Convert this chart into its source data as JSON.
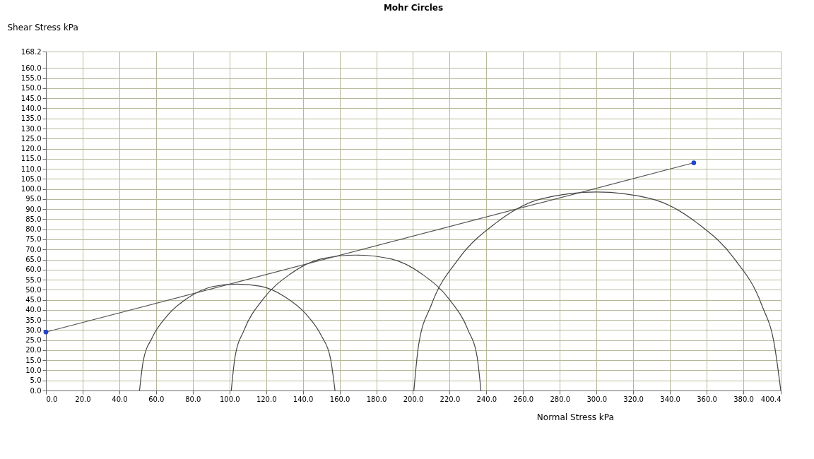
{
  "chart_data": {
    "type": "line",
    "title": "Mohr Circles",
    "xlabel": "Normal Stress  kPa",
    "ylabel": "Shear Stress  kPa",
    "xlim": [
      0,
      400.4
    ],
    "ylim": [
      0,
      168.2
    ],
    "grid": true,
    "xticks": [
      {
        "value": 0,
        "label": "0.0"
      },
      {
        "value": 20,
        "label": "20.0"
      },
      {
        "value": 40,
        "label": "40.0"
      },
      {
        "value": 60,
        "label": "60.0"
      },
      {
        "value": 80,
        "label": "80.0"
      },
      {
        "value": 100,
        "label": "100.0"
      },
      {
        "value": 120,
        "label": "120.0"
      },
      {
        "value": 140,
        "label": "140.0"
      },
      {
        "value": 160,
        "label": "160.0"
      },
      {
        "value": 180,
        "label": "180.0"
      },
      {
        "value": 200,
        "label": "200.0"
      },
      {
        "value": 220,
        "label": "220.0"
      },
      {
        "value": 240,
        "label": "240.0"
      },
      {
        "value": 260,
        "label": "260.0"
      },
      {
        "value": 280,
        "label": "280.0"
      },
      {
        "value": 300,
        "label": "300.0"
      },
      {
        "value": 320,
        "label": "320.0"
      },
      {
        "value": 340,
        "label": "340.0"
      },
      {
        "value": 360,
        "label": "360.0"
      },
      {
        "value": 380,
        "label": "380.0"
      },
      400.4
    ],
    "yticks": [
      {
        "value": 0,
        "label": "0.0"
      },
      {
        "value": 5,
        "label": "5.0"
      },
      {
        "value": 10,
        "label": "10.0"
      },
      {
        "value": 15,
        "label": "15.0"
      },
      {
        "value": 20,
        "label": "20.0"
      },
      {
        "value": 25,
        "label": "25.0"
      },
      {
        "value": 30,
        "label": "30.0"
      },
      {
        "value": 35,
        "label": "35.0"
      },
      {
        "value": 40,
        "label": "40.0"
      },
      {
        "value": 45,
        "label": "45.0"
      },
      {
        "value": 50,
        "label": "50.0"
      },
      {
        "value": 55,
        "label": "55.0"
      },
      {
        "value": 60,
        "label": "60.0"
      },
      {
        "value": 65,
        "label": "65.0"
      },
      {
        "value": 70,
        "label": "70.0"
      },
      {
        "value": 75,
        "label": "75.0"
      },
      {
        "value": 80,
        "label": "80.0"
      },
      {
        "value": 85,
        "label": "85.0"
      },
      {
        "value": 90,
        "label": "90.0"
      },
      {
        "value": 95,
        "label": "95.0"
      },
      {
        "value": 100,
        "label": "100.0"
      },
      {
        "value": 105,
        "label": "105.0"
      },
      {
        "value": 110,
        "label": "110.0"
      },
      {
        "value": 115,
        "label": "115.0"
      },
      {
        "value": 120,
        "label": "120.0"
      },
      {
        "value": 125,
        "label": "125.0"
      },
      {
        "value": 130,
        "label": "130.0"
      },
      {
        "value": 135,
        "label": "135.0"
      },
      {
        "value": 140,
        "label": "140.0"
      },
      {
        "value": 145,
        "label": "145.0"
      },
      {
        "value": 150,
        "label": "150.0"
      },
      {
        "value": 155,
        "label": "155.0"
      },
      {
        "value": 160,
        "label": "160.0"
      },
      168.2
    ],
    "series": [
      {
        "color": "#444444",
        "x": [
          51,
          53,
          58,
          66,
          78,
          91,
          104,
          117,
          130,
          142,
          150,
          155,
          157.5
        ],
        "values": [
          0,
          14.5,
          26.4,
          37.0,
          46.3,
          51.6,
          52.8,
          51.7,
          46.6,
          37.6,
          27.3,
          16.1,
          0
        ]
      },
      {
        "color": "#444444",
        "x": [
          101,
          103,
          108,
          118,
          133,
          150,
          169,
          188,
          205,
          220,
          230,
          235,
          237
        ],
        "values": [
          0,
          16.4,
          30.0,
          45.0,
          57.7,
          65.3,
          67.2,
          65.3,
          57.7,
          45.0,
          30.0,
          16.4,
          0
        ]
      },
      {
        "color": "#444444",
        "x": [
          200.5,
          203,
          210,
          225,
          245,
          270,
          300,
          330,
          355,
          375,
          390,
          397,
          400.4
        ],
        "values": [
          0,
          22.2,
          42.5,
          65.5,
          83.0,
          95.1,
          98.5,
          95.1,
          83.0,
          65.5,
          42.5,
          22.2,
          0
        ]
      },
      {
        "color": "#555555",
        "x": [
          0,
          353
        ],
        "values": [
          29,
          113
        ]
      },
      {
        "type": "scatter",
        "color": "#2244cc",
        "marker": "circle",
        "x": [
          0,
          353
        ],
        "values": [
          29,
          113
        ]
      }
    ]
  }
}
